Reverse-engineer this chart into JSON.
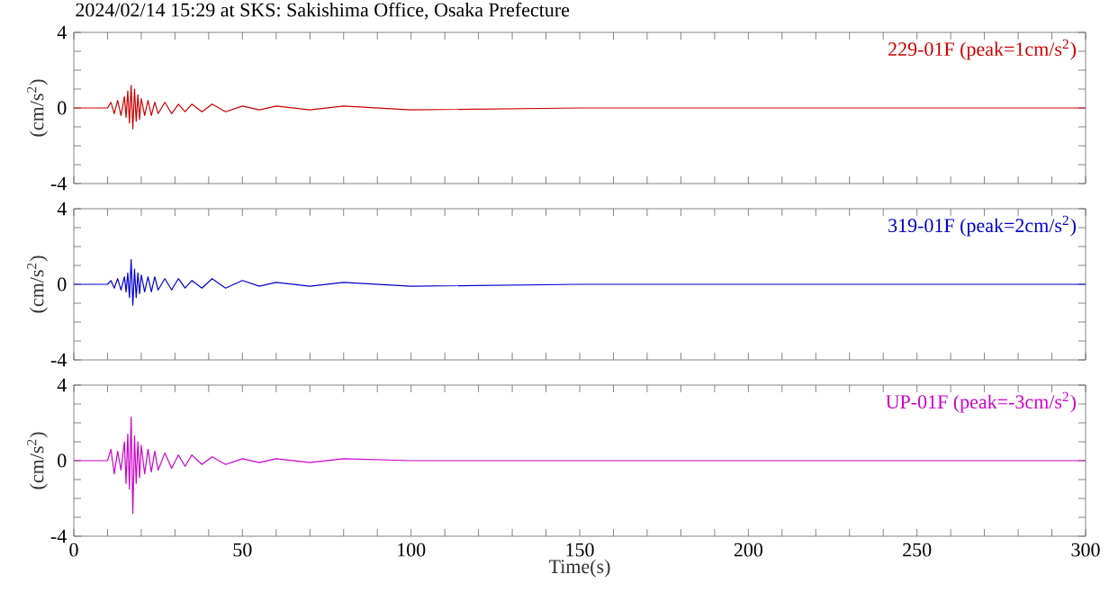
{
  "chart_data": [
    {
      "type": "line",
      "title": "2024/02/14 15:29 at SKS: Sakishima Office, Osaka Prefecture",
      "ylabel": "(cm/s$^{2}$)",
      "xlim": [
        0,
        300
      ],
      "ylim": [
        -4,
        4
      ],
      "xticks": [
        0,
        {
          "value": 10,
          "label": null
        },
        {
          "value": 20,
          "label": null
        },
        {
          "value": 30,
          "label": null
        },
        {
          "value": 40,
          "label": null
        },
        50,
        {
          "value": 60,
          "label": null
        },
        {
          "value": 70,
          "label": null
        },
        {
          "value": 80,
          "label": null
        },
        {
          "value": 90,
          "label": null
        },
        100,
        {
          "value": 110,
          "label": null
        },
        {
          "value": 120,
          "label": null
        },
        {
          "value": 130,
          "label": null
        },
        {
          "value": 140,
          "label": null
        },
        150,
        {
          "value": 160,
          "label": null
        },
        {
          "value": 170,
          "label": null
        },
        {
          "value": 180,
          "label": null
        },
        {
          "value": 190,
          "label": null
        },
        200,
        {
          "value": 210,
          "label": null
        },
        {
          "value": 220,
          "label": null
        },
        {
          "value": 230,
          "label": null
        },
        {
          "value": 240,
          "label": null
        },
        250,
        {
          "value": 260,
          "label": null
        },
        {
          "value": 270,
          "label": null
        },
        {
          "value": 280,
          "label": null
        },
        {
          "value": 290,
          "label": null
        },
        300
      ],
      "yticks": [
        -4,
        {
          "value": -3,
          "label": null
        },
        {
          "value": -2,
          "label": null
        },
        {
          "value": -1,
          "label": null
        },
        0,
        {
          "value": 1,
          "label": null
        },
        {
          "value": 2,
          "label": null
        },
        {
          "value": 3,
          "label": null
        },
        4
      ],
      "tick_labels": "y",
      "x": [
        0,
        10,
        11,
        12,
        13,
        14,
        15,
        15.5,
        16,
        16.5,
        17,
        17.5,
        18,
        18.5,
        19,
        19.5,
        20,
        21,
        22,
        23,
        24,
        25,
        27,
        29,
        31,
        33,
        35,
        38,
        41,
        45,
        50,
        55,
        60,
        70,
        80,
        100,
        150,
        200,
        250,
        300
      ],
      "series": [
        {
          "name": "229-01F (peak=1cm/s$^{2}$)",
          "color": "#cc0000",
          "values": [
            0,
            0,
            0.3,
            -0.3,
            0.4,
            -0.4,
            0.6,
            -0.5,
            0.9,
            -0.8,
            1.2,
            -1.1,
            1.0,
            -0.7,
            0.7,
            -0.6,
            0.5,
            -0.4,
            0.4,
            -0.4,
            0.3,
            -0.3,
            0.3,
            -0.3,
            0.2,
            -0.2,
            0.2,
            -0.2,
            0.2,
            -0.2,
            0.1,
            -0.1,
            0.1,
            -0.1,
            0.1,
            -0.1,
            0,
            0,
            0,
            0
          ]
        }
      ]
    },
    {
      "type": "line",
      "ylabel": "(cm/s$^{2}$)",
      "xlim": [
        0,
        300
      ],
      "ylim": [
        -4,
        4
      ],
      "xticks": [
        0,
        {
          "value": 10,
          "label": null
        },
        {
          "value": 20,
          "label": null
        },
        {
          "value": 30,
          "label": null
        },
        {
          "value": 40,
          "label": null
        },
        50,
        {
          "value": 60,
          "label": null
        },
        {
          "value": 70,
          "label": null
        },
        {
          "value": 80,
          "label": null
        },
        {
          "value": 90,
          "label": null
        },
        100,
        {
          "value": 110,
          "label": null
        },
        {
          "value": 120,
          "label": null
        },
        {
          "value": 130,
          "label": null
        },
        {
          "value": 140,
          "label": null
        },
        150,
        {
          "value": 160,
          "label": null
        },
        {
          "value": 170,
          "label": null
        },
        {
          "value": 180,
          "label": null
        },
        {
          "value": 190,
          "label": null
        },
        200,
        {
          "value": 210,
          "label": null
        },
        {
          "value": 220,
          "label": null
        },
        {
          "value": 230,
          "label": null
        },
        {
          "value": 240,
          "label": null
        },
        250,
        {
          "value": 260,
          "label": null
        },
        {
          "value": 270,
          "label": null
        },
        {
          "value": 280,
          "label": null
        },
        {
          "value": 290,
          "label": null
        },
        300
      ],
      "yticks": [
        -4,
        {
          "value": -3,
          "label": null
        },
        {
          "value": -2,
          "label": null
        },
        {
          "value": -1,
          "label": null
        },
        0,
        {
          "value": 1,
          "label": null
        },
        {
          "value": 2,
          "label": null
        },
        {
          "value": 3,
          "label": null
        },
        4
      ],
      "tick_labels": "y",
      "x": [
        0,
        10,
        11,
        12,
        13,
        14,
        15,
        15.5,
        16,
        16.5,
        17,
        17.5,
        18,
        18.5,
        19,
        19.5,
        20,
        21,
        22,
        23,
        24,
        25,
        27,
        29,
        31,
        33,
        35,
        38,
        41,
        45,
        50,
        55,
        60,
        70,
        80,
        100,
        150,
        200,
        250,
        300
      ],
      "series": [
        {
          "name": "319-01F (peak=2cm/s$^{2}$)",
          "color": "#0000cc",
          "values": [
            0,
            0,
            0.2,
            -0.2,
            0.3,
            -0.3,
            0.4,
            -0.4,
            0.6,
            -0.7,
            1.3,
            -1.1,
            0.8,
            -0.7,
            0.6,
            -0.5,
            0.5,
            -0.4,
            0.4,
            -0.4,
            0.4,
            -0.3,
            0.3,
            -0.3,
            0.3,
            -0.2,
            0.2,
            -0.2,
            0.3,
            -0.2,
            0.2,
            -0.1,
            0.1,
            -0.1,
            0.1,
            -0.1,
            0,
            0,
            0,
            0
          ]
        }
      ]
    },
    {
      "type": "line",
      "ylabel": "(cm/s$^{2}$)",
      "xlabel": "Time(s)",
      "xlim": [
        0,
        300
      ],
      "ylim": [
        -4,
        4
      ],
      "xticks": [
        0,
        {
          "value": 10,
          "label": null
        },
        {
          "value": 20,
          "label": null
        },
        {
          "value": 30,
          "label": null
        },
        {
          "value": 40,
          "label": null
        },
        50,
        {
          "value": 60,
          "label": null
        },
        {
          "value": 70,
          "label": null
        },
        {
          "value": 80,
          "label": null
        },
        {
          "value": 90,
          "label": null
        },
        100,
        {
          "value": 110,
          "label": null
        },
        {
          "value": 120,
          "label": null
        },
        {
          "value": 130,
          "label": null
        },
        {
          "value": 140,
          "label": null
        },
        150,
        {
          "value": 160,
          "label": null
        },
        {
          "value": 170,
          "label": null
        },
        {
          "value": 180,
          "label": null
        },
        {
          "value": 190,
          "label": null
        },
        200,
        {
          "value": 210,
          "label": null
        },
        {
          "value": 220,
          "label": null
        },
        {
          "value": 230,
          "label": null
        },
        {
          "value": 240,
          "label": null
        },
        250,
        {
          "value": 260,
          "label": null
        },
        {
          "value": 270,
          "label": null
        },
        {
          "value": 280,
          "label": null
        },
        {
          "value": 290,
          "label": null
        },
        300
      ],
      "yticks": [
        -4,
        {
          "value": -3,
          "label": null
        },
        {
          "value": -2,
          "label": null
        },
        {
          "value": -1,
          "label": null
        },
        0,
        {
          "value": 1,
          "label": null
        },
        {
          "value": 2,
          "label": null
        },
        {
          "value": 3,
          "label": null
        },
        4
      ],
      "x": [
        0,
        10,
        11,
        12,
        13,
        14,
        15,
        15.5,
        16,
        16.5,
        17,
        17.5,
        18,
        18.5,
        19,
        19.5,
        20,
        21,
        22,
        23,
        24,
        25,
        27,
        29,
        31,
        33,
        35,
        38,
        41,
        45,
        50,
        55,
        60,
        70,
        80,
        100,
        150,
        200,
        250,
        300
      ],
      "series": [
        {
          "name": "UP-01F (peak=-3cm/s$^{2}$)",
          "color": "#cc00cc",
          "values": [
            0,
            0,
            0.6,
            -0.7,
            0.5,
            -0.5,
            1.0,
            -1.2,
            1.4,
            -1.5,
            2.3,
            -2.8,
            1.3,
            -1.2,
            1.0,
            -0.9,
            0.8,
            -0.7,
            0.6,
            -0.6,
            0.5,
            -0.5,
            0.4,
            -0.4,
            0.3,
            -0.3,
            0.3,
            -0.2,
            0.2,
            -0.2,
            0.1,
            -0.1,
            0.1,
            -0.1,
            0.1,
            0,
            0,
            0,
            0,
            0
          ]
        }
      ]
    }
  ]
}
